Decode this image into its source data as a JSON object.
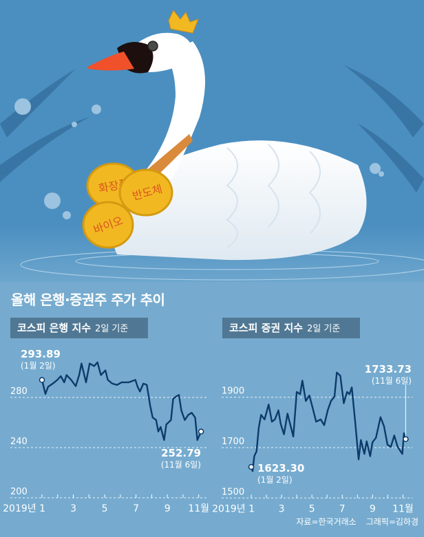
{
  "illustration": {
    "coins": [
      "화장품",
      "반도체",
      "바이오"
    ],
    "colors": {
      "sky": "#4a8fc0",
      "coin": "#f2b822",
      "coin_text": "#d9541e",
      "beak": "#f0502a"
    }
  },
  "title": "올해 은행·증권주 주가 추이",
  "source": "자료=한국거래소",
  "credit": "그래픽=김하경",
  "chart_data": [
    {
      "type": "line",
      "title": "코스피 은행 지수",
      "subtitle": "2일 기준",
      "xlabel": "",
      "ylabel": "",
      "xticks": [
        "2019년 1",
        "3",
        "5",
        "7",
        "9",
        "11월"
      ],
      "xtick_values": [
        1,
        3,
        5,
        7,
        9,
        11
      ],
      "yticks": [
        200,
        240,
        280
      ],
      "ylim": [
        200,
        300
      ],
      "xlim": [
        1,
        11
      ],
      "grid": "horizontal dashed",
      "line_color": "#0d3a6b",
      "annotations": [
        {
          "value": "293.89",
          "date": "(1월 2일)"
        },
        {
          "value": "252.79",
          "date": "(11월 6일)"
        }
      ],
      "x": [
        1.0,
        1.22,
        1.39,
        1.69,
        1.98,
        2.2,
        2.42,
        2.57,
        2.86,
        3.15,
        3.37,
        3.52,
        3.81,
        4.04,
        4.33,
        4.54,
        4.76,
        5.05,
        5.2,
        5.49,
        5.79,
        6.08,
        6.52,
        6.96,
        7.1,
        7.25,
        7.47,
        7.69,
        7.91,
        8.06,
        8.28,
        8.42,
        8.57,
        8.79,
        8.93,
        9.23,
        9.37,
        9.59,
        9.74,
        9.89,
        10.11,
        10.33,
        10.55,
        10.77,
        10.91,
        11.15
      ],
      "y": [
        293.89,
        282.8,
        288.5,
        291,
        294,
        297,
        292,
        297.8,
        294,
        289,
        297.8,
        307,
        292,
        307,
        305,
        308,
        297.8,
        301.6,
        294,
        291,
        290,
        292,
        292,
        294,
        288.5,
        284.7,
        291,
        290,
        273,
        264,
        262,
        252.8,
        256.5,
        246,
        258.4,
        262,
        279,
        281,
        282,
        269.7,
        262,
        266,
        267.8,
        264,
        246,
        252.79
      ]
    },
    {
      "type": "line",
      "title": "코스피 증권 지수",
      "subtitle": "2일 기준",
      "xlabel": "",
      "ylabel": "",
      "xticks": [
        "2019년 1",
        "3",
        "5",
        "7",
        "9",
        "11월"
      ],
      "xtick_values": [
        1,
        3,
        5,
        7,
        9,
        11
      ],
      "yticks": [
        1500,
        1700,
        1900
      ],
      "ylim": [
        1500,
        2020
      ],
      "xlim": [
        1,
        11
      ],
      "grid": "horizontal dashed",
      "line_color": "#0d3a6b",
      "annotations": [
        {
          "value": "1623.30",
          "date": "(1월 2일)"
        },
        {
          "value": "1733.73",
          "date": "(11월 6일)"
        }
      ],
      "x": [
        1.0,
        1.09,
        1.2,
        1.35,
        1.5,
        1.65,
        1.88,
        2.15,
        2.36,
        2.56,
        2.79,
        2.94,
        3.16,
        3.39,
        3.77,
        4.0,
        4.22,
        4.37,
        4.6,
        4.83,
        5.05,
        5.28,
        5.58,
        5.81,
        6.04,
        6.26,
        6.49,
        6.64,
        6.87,
        7.1,
        7.32,
        7.48,
        7.63,
        7.85,
        8.08,
        8.23,
        8.46,
        8.61,
        8.84,
        8.99,
        9.22,
        9.52,
        9.75,
        9.98,
        10.2,
        10.43,
        10.65,
        10.96,
        11.07,
        11.18
      ],
      "y": [
        1623.3,
        1607,
        1666,
        1685,
        1780,
        1830,
        1812,
        1871,
        1803,
        1812,
        1848,
        1794,
        1753,
        1835,
        1744,
        1921,
        1912,
        1966,
        1885,
        1907,
        1857,
        1803,
        1812,
        1789,
        1848,
        1885,
        1903,
        1998,
        1985,
        1876,
        1921,
        1912,
        1939,
        1803,
        1653,
        1730,
        1675,
        1725,
        1666,
        1721,
        1739,
        1821,
        1785,
        1712,
        1703,
        1748,
        1703,
        1675,
        1757,
        1733.73
      ]
    }
  ]
}
